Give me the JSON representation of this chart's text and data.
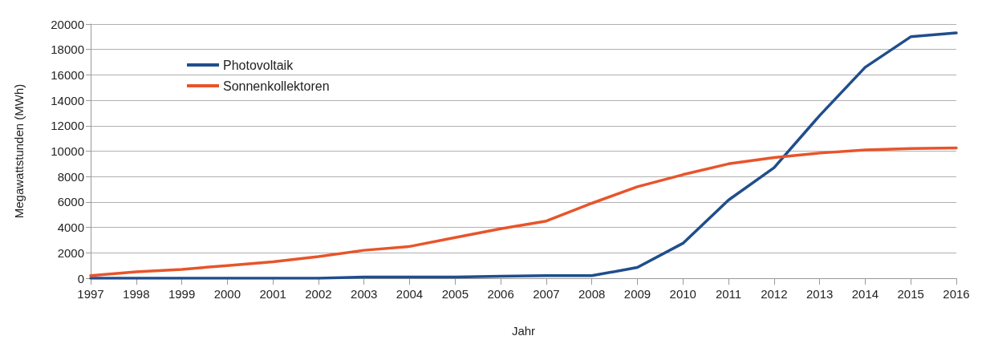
{
  "chart_data": {
    "type": "line",
    "xlabel": "Jahr",
    "ylabel": "Megawattstunden (MWh)",
    "categories": [
      "1997",
      "1998",
      "1999",
      "2000",
      "2001",
      "2002",
      "2003",
      "2004",
      "2005",
      "2006",
      "2007",
      "2008",
      "2009",
      "2010",
      "2011",
      "2012",
      "2013",
      "2014",
      "2015",
      "2016"
    ],
    "series": [
      {
        "name": "Photovoltaik",
        "color": "#1f4e8c",
        "values": [
          0,
          0,
          0,
          0,
          0,
          0,
          100,
          100,
          100,
          150,
          200,
          200,
          850,
          2750,
          6150,
          8700,
          12800,
          16600,
          19000,
          19300
        ]
      },
      {
        "name": "Sonnenkollektoren",
        "color": "#e8542a",
        "values": [
          200,
          500,
          700,
          1000,
          1300,
          1700,
          2200,
          2500,
          3200,
          3900,
          4500,
          5900,
          7200,
          8150,
          9000,
          9500,
          9850,
          10100,
          10200,
          10250
        ]
      }
    ],
    "ylim": [
      0,
      20000
    ],
    "yticks": [
      0,
      2000,
      4000,
      6000,
      8000,
      10000,
      12000,
      14000,
      16000,
      18000,
      20000
    ],
    "grid": "y",
    "legend": "top left",
    "marker": "none",
    "line_style": "solid"
  }
}
